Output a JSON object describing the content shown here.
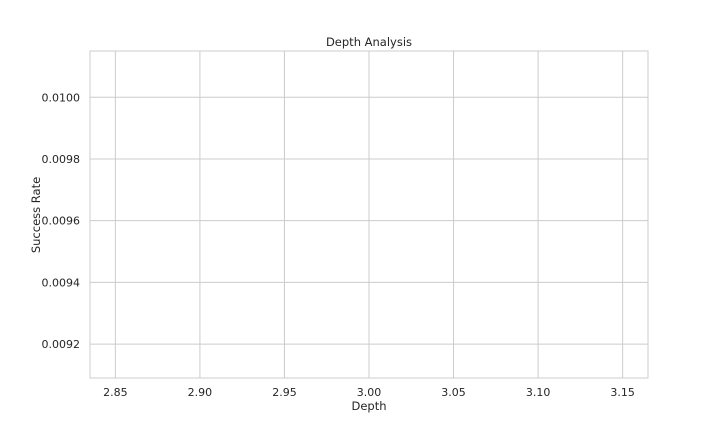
{
  "chart_data": {
    "type": "scatter",
    "title": "Depth Analysis",
    "xlabel": "Depth",
    "ylabel": "Success Rate",
    "xlim": [
      2.835,
      3.165
    ],
    "ylim": [
      0.00909,
      0.01015
    ],
    "xticks": [
      2.85,
      2.9,
      2.95,
      3.0,
      3.05,
      3.1,
      3.15
    ],
    "xtick_labels": [
      "2.85",
      "2.90",
      "2.95",
      "3.00",
      "3.05",
      "3.10",
      "3.15"
    ],
    "yticks": [
      0.0092,
      0.0094,
      0.0096,
      0.0098,
      0.01
    ],
    "ytick_labels": [
      "0.0092",
      "0.0094",
      "0.0096",
      "0.0098",
      "0.0100"
    ],
    "grid": true,
    "series": []
  }
}
